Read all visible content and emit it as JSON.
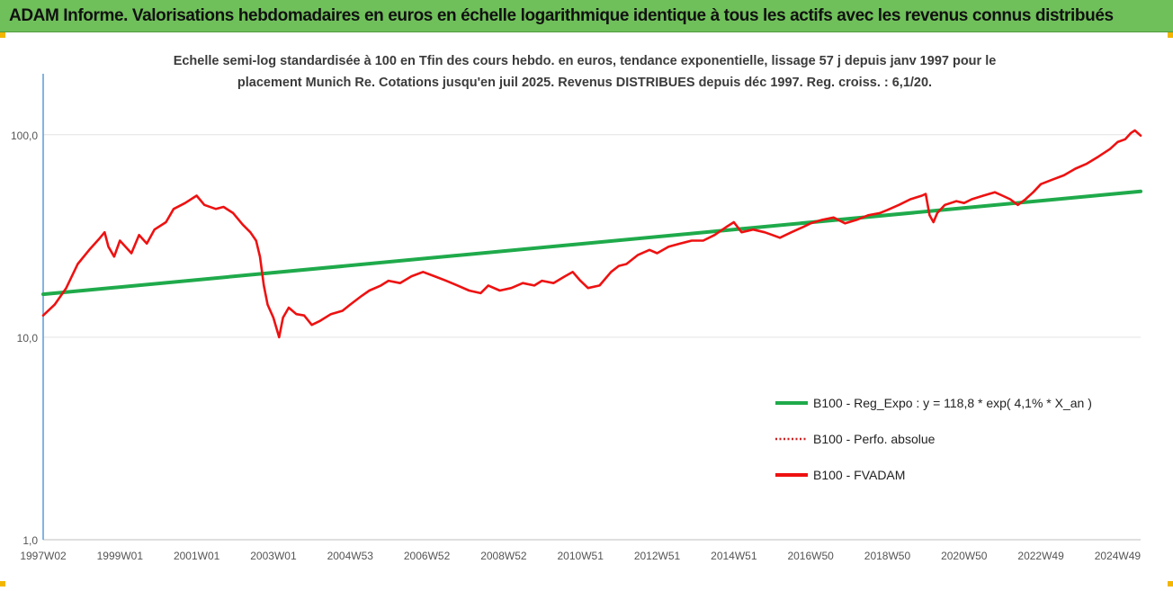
{
  "header": {
    "title": "ADAM Informe. Valorisations hebdomadaires en euros en échelle logarithmique identique à tous les actifs avec les revenus connus distribués"
  },
  "colors": {
    "header_bg": "#6fc05a",
    "regression": "#1faa4b",
    "fvadam": "#ee1111",
    "perfo": "#cc2222",
    "axis": "#5b9bd5",
    "grid": "#e4e4e4",
    "corner": "#f2b600"
  },
  "chart_data": {
    "type": "line",
    "title_lines": [
      "Echelle semi-log standardisée à 100 en Tfin des cours hebdo. en euros, tendance exponentielle, lissage 57 j depuis janv 1997 pour le",
      "placement Munich Re. Cotations jusqu'en juil 2025. Revenus DISTRIBUES depuis déc 1997.  Reg. croiss. : 6,1/20."
    ],
    "y_scale": "log",
    "ylim": [
      1,
      200
    ],
    "y_ticks": [
      {
        "value": 1,
        "label": "1,0"
      },
      {
        "value": 10,
        "label": "10,0"
      },
      {
        "value": 100,
        "label": "100,0"
      }
    ],
    "xlim": [
      1997.0,
      2025.6
    ],
    "x_ticks": [
      {
        "value": 1997.0,
        "label": "1997W02"
      },
      {
        "value": 1999.0,
        "label": "1999W01"
      },
      {
        "value": 2001.0,
        "label": "2001W01"
      },
      {
        "value": 2003.0,
        "label": "2003W01"
      },
      {
        "value": 2005.0,
        "label": "2004W53"
      },
      {
        "value": 2007.0,
        "label": "2006W52"
      },
      {
        "value": 2009.0,
        "label": "2008W52"
      },
      {
        "value": 2011.0,
        "label": "2010W51"
      },
      {
        "value": 2013.0,
        "label": "2012W51"
      },
      {
        "value": 2015.0,
        "label": "2014W51"
      },
      {
        "value": 2017.0,
        "label": "2016W50"
      },
      {
        "value": 2019.0,
        "label": "2018W50"
      },
      {
        "value": 2021.0,
        "label": "2020W50"
      },
      {
        "value": 2023.0,
        "label": "2022W49"
      },
      {
        "value": 2025.0,
        "label": "2024W49"
      }
    ],
    "legend_position": "bottom-right",
    "series": [
      {
        "name": "B100 - Reg_Expo : y = 118,8 * exp( 4,1% *  X_an )",
        "style": "solid-green",
        "x": [
          1997.0,
          2025.6
        ],
        "values": [
          16.3,
          52.5
        ]
      },
      {
        "name": "B100 - Perfo. absolue",
        "style": "dotted-red",
        "x": [],
        "values": []
      },
      {
        "name": "B100 - FVADAM",
        "style": "solid-red",
        "x": [
          1997.0,
          1997.3,
          1997.6,
          1997.9,
          1998.2,
          1998.45,
          1998.6,
          1998.7,
          1998.85,
          1999.0,
          1999.3,
          1999.5,
          1999.7,
          1999.9,
          2000.2,
          2000.4,
          2000.7,
          2001.0,
          2001.2,
          2001.5,
          2001.7,
          2001.95,
          2002.2,
          2002.4,
          2002.55,
          2002.65,
          2002.75,
          2002.85,
          2003.0,
          2003.15,
          2003.25,
          2003.4,
          2003.6,
          2003.8,
          2004.0,
          2004.2,
          2004.5,
          2004.8,
          2005.0,
          2005.3,
          2005.5,
          2005.8,
          2006.0,
          2006.3,
          2006.6,
          2006.9,
          2007.2,
          2007.5,
          2007.8,
          2008.1,
          2008.4,
          2008.6,
          2008.9,
          2009.2,
          2009.5,
          2009.8,
          2010.0,
          2010.3,
          2010.6,
          2010.8,
          2011.0,
          2011.2,
          2011.5,
          2011.8,
          2012.0,
          2012.2,
          2012.5,
          2012.8,
          2013.0,
          2013.3,
          2013.6,
          2013.9,
          2014.2,
          2014.5,
          2014.8,
          2015.0,
          2015.2,
          2015.5,
          2015.8,
          2016.0,
          2016.2,
          2016.5,
          2016.8,
          2017.0,
          2017.3,
          2017.6,
          2017.9,
          2018.2,
          2018.5,
          2018.8,
          2019.0,
          2019.3,
          2019.6,
          2019.9,
          2020.0,
          2020.1,
          2020.2,
          2020.3,
          2020.5,
          2020.8,
          2021.0,
          2021.2,
          2021.5,
          2021.8,
          2022.0,
          2022.2,
          2022.4,
          2022.6,
          2022.8,
          2023.0,
          2023.3,
          2023.6,
          2023.9,
          2024.2,
          2024.5,
          2024.8,
          2025.0,
          2025.2,
          2025.35,
          2025.45,
          2025.6
        ],
        "values": [
          12.8,
          14.5,
          17.5,
          23.0,
          27.0,
          30.5,
          33.0,
          28.0,
          25.0,
          30.0,
          26.0,
          32.0,
          29.0,
          34.0,
          37.0,
          43.0,
          46.0,
          50.0,
          45.0,
          43.0,
          44.0,
          41.0,
          36.0,
          33.0,
          30.0,
          25.0,
          18.0,
          14.5,
          12.5,
          10.0,
          12.5,
          14.0,
          13.0,
          12.8,
          11.5,
          12.0,
          13.0,
          13.5,
          14.5,
          16.0,
          17.0,
          18.0,
          19.0,
          18.5,
          20.0,
          21.0,
          20.0,
          19.0,
          18.0,
          17.0,
          16.5,
          18.0,
          17.0,
          17.5,
          18.5,
          18.0,
          19.0,
          18.5,
          20.0,
          21.0,
          19.0,
          17.5,
          18.0,
          21.0,
          22.5,
          23.0,
          25.5,
          27.0,
          26.0,
          28.0,
          29.0,
          30.0,
          30.0,
          32.0,
          35.0,
          37.0,
          33.0,
          34.0,
          33.0,
          32.0,
          31.0,
          33.0,
          35.0,
          36.5,
          38.0,
          39.0,
          36.5,
          38.0,
          40.0,
          41.0,
          42.5,
          45.0,
          48.0,
          50.0,
          51.0,
          40.0,
          37.0,
          41.0,
          45.0,
          47.0,
          46.0,
          48.0,
          50.0,
          52.0,
          50.0,
          48.0,
          45.0,
          48.0,
          52.0,
          57.0,
          60.0,
          63.0,
          68.0,
          72.0,
          78.0,
          85.0,
          92.0,
          95.0,
          102.0,
          105.0,
          99.0
        ]
      }
    ]
  }
}
